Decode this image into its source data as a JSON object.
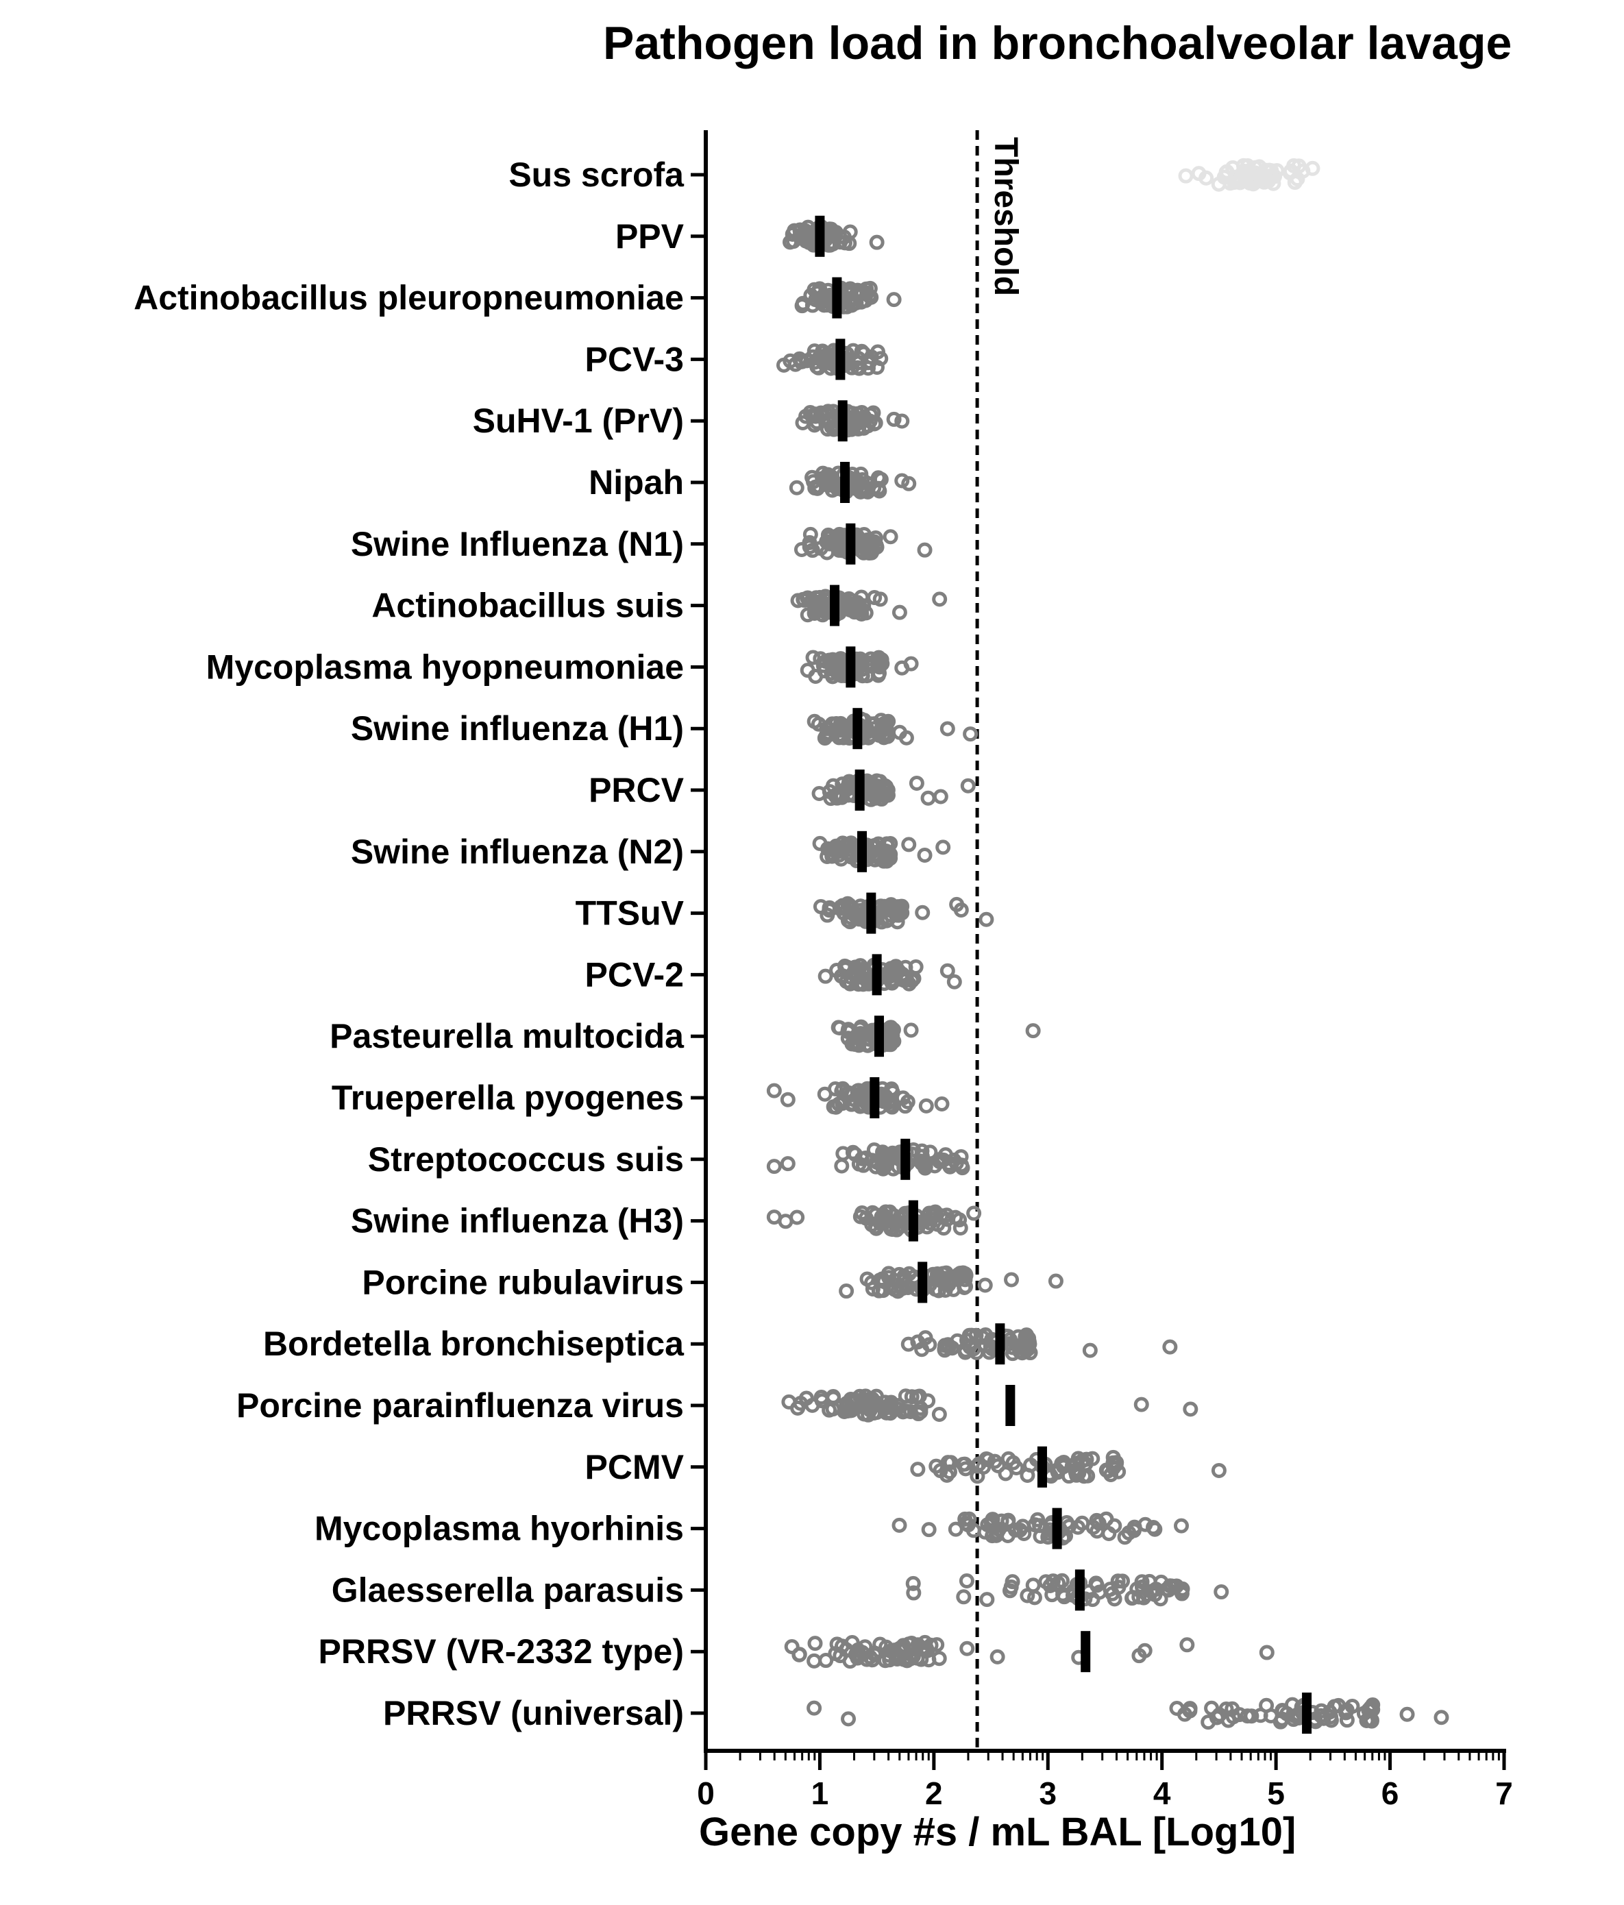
{
  "chart_data": {
    "type": "scatter",
    "title": "Pathogen load in bronchoalveolar lavage",
    "xlabel": "Gene copy #s / mL BAL [Log10]",
    "ylabel": "",
    "xlim": [
      0,
      7
    ],
    "xticks": [
      "0",
      "1",
      "2",
      "3",
      "4",
      "5",
      "6",
      "7"
    ],
    "threshold": {
      "value": 2.38,
      "label": "Threshold"
    },
    "colors": {
      "points": "#808080",
      "host_points": "#e3e3e3",
      "median": "#000000",
      "axis": "#000000"
    },
    "grid": false,
    "categories": [
      "Sus scrofa",
      "PPV",
      "Actinobacillus pleuropneumoniae",
      "PCV-3",
      "SuHV-1 (PrV)",
      "Nipah",
      "Swine Influenza (N1)",
      "Actinobacillus suis",
      "Mycoplasma hyopneumoniae",
      "Swine influenza (H1)",
      "PRCV",
      "Swine influenza (N2)",
      "TTSuV",
      "PCV-2",
      "Pasteurella multocida",
      "Trueperella pyogenes",
      "Streptococcus suis",
      "Swine influenza (H3)",
      "Porcine rubulavirus",
      "Bordetella bronchiseptica",
      "Porcine parainfluenza virus",
      "PCMV",
      "Mycoplasma hyorhinis",
      "Glaesserella parasuis",
      "PRRSV (VR-2332 type)",
      "PRRSV (universal)"
    ],
    "series": [
      {
        "category": "Sus scrofa",
        "median": 4.8,
        "range": [
          3.95,
          5.35
        ],
        "outliers": [],
        "n": 60
      },
      {
        "category": "PPV",
        "median": 1.0,
        "range": [
          0.6,
          1.3
        ],
        "outliers": [
          1.5
        ],
        "n": 60
      },
      {
        "category": "Actinobacillus pleuropneumoniae",
        "median": 1.15,
        "range": [
          0.6,
          1.45
        ],
        "outliers": [
          1.65
        ],
        "n": 60
      },
      {
        "category": "PCV-3",
        "median": 1.18,
        "range": [
          0.6,
          1.55
        ],
        "outliers": [],
        "n": 60
      },
      {
        "category": "SuHV-1 (PrV)",
        "median": 1.2,
        "range": [
          0.6,
          1.5
        ],
        "outliers": [
          1.65,
          1.72
        ],
        "n": 60
      },
      {
        "category": "Nipah",
        "median": 1.22,
        "range": [
          0.6,
          1.55
        ],
        "outliers": [
          1.72,
          1.78
        ],
        "n": 60
      },
      {
        "category": "Swine Influenza (N1)",
        "median": 1.27,
        "range": [
          0.6,
          1.5
        ],
        "outliers": [
          1.62,
          1.92
        ],
        "n": 60
      },
      {
        "category": "Actinobacillus suis",
        "median": 1.13,
        "range": [
          0.6,
          1.55
        ],
        "outliers": [
          1.7,
          2.05
        ],
        "n": 60
      },
      {
        "category": "Mycoplasma hyopneumoniae",
        "median": 1.27,
        "range": [
          0.6,
          1.55
        ],
        "outliers": [
          1.72,
          1.8
        ],
        "n": 60
      },
      {
        "category": "Swine influenza (H1)",
        "median": 1.33,
        "range": [
          0.6,
          1.6
        ],
        "outliers": [
          1.7,
          1.76,
          2.12,
          2.32
        ],
        "n": 60
      },
      {
        "category": "PRCV",
        "median": 1.35,
        "range": [
          0.6,
          1.6
        ],
        "outliers": [
          1.85,
          1.95,
          2.06,
          2.3
        ],
        "n": 60
      },
      {
        "category": "Swine influenza (N2)",
        "median": 1.37,
        "range": [
          0.6,
          1.62
        ],
        "outliers": [
          1.78,
          1.92,
          2.08
        ],
        "n": 60
      },
      {
        "category": "TTSuV",
        "median": 1.45,
        "range": [
          0.6,
          1.72
        ],
        "outliers": [
          1.9,
          2.2,
          2.24,
          2.46
        ],
        "n": 60
      },
      {
        "category": "PCV-2",
        "median": 1.5,
        "range": [
          0.65,
          1.85
        ],
        "outliers": [
          2.12,
          2.18
        ],
        "n": 60
      },
      {
        "category": "Pasteurella multocida",
        "median": 1.52,
        "range": [
          0.6,
          1.65
        ],
        "outliers": [
          1.8,
          2.87
        ],
        "n": 60
      },
      {
        "category": "Trueperella pyogenes",
        "median": 1.48,
        "range": [
          0.93,
          1.95
        ],
        "outliers": [
          0.6,
          0.72,
          2.07
        ],
        "n": 60
      },
      {
        "category": "Streptococcus suis",
        "median": 1.75,
        "range": [
          0.93,
          2.3
        ],
        "outliers": [
          0.6,
          0.72
        ],
        "n": 60
      },
      {
        "category": "Swine influenza (H3)",
        "median": 1.82,
        "range": [
          0.95,
          2.25
        ],
        "outliers": [
          0.6,
          0.7,
          0.8,
          2.35
        ],
        "n": 60
      },
      {
        "category": "Porcine rubulavirus",
        "median": 1.9,
        "range": [
          0.6,
          2.3
        ],
        "outliers": [
          2.45,
          2.68,
          3.07
        ],
        "n": 60
      },
      {
        "category": "Bordetella bronchiseptica",
        "median": 2.58,
        "range": [
          0.6,
          2.85
        ],
        "outliers": [
          3.37,
          4.07
        ],
        "n": 60
      },
      {
        "category": "Porcine parainfluenza virus",
        "median": 2.67,
        "range": [
          0.6,
          2.35
        ],
        "outliers": [
          3.82,
          4.25
        ],
        "n": 60
      },
      {
        "category": "PCMV",
        "median": 2.95,
        "range": [
          0.6,
          3.62
        ],
        "outliers": [
          4.5
        ],
        "n": 60
      },
      {
        "category": "Mycoplasma hyorhinis",
        "median": 3.08,
        "range": [
          0.7,
          3.95
        ],
        "outliers": [
          4.17
        ],
        "n": 60
      },
      {
        "category": "Glaesserella parasuis",
        "median": 3.28,
        "range": [
          0.7,
          4.22
        ],
        "outliers": [
          4.52
        ],
        "n": 60
      },
      {
        "category": "PRRSV (VR-2332 type)",
        "median": 3.33,
        "range": [
          0.6,
          2.7
        ],
        "outliers": [
          3.27,
          3.8,
          3.85,
          4.22,
          4.92
        ],
        "n": 60
      },
      {
        "category": "PRRSV (universal)",
        "median": 5.27,
        "range": [
          2.62,
          5.85
        ],
        "outliers": [
          0.95,
          1.25,
          6.15,
          6.45
        ],
        "n": 60
      }
    ]
  }
}
